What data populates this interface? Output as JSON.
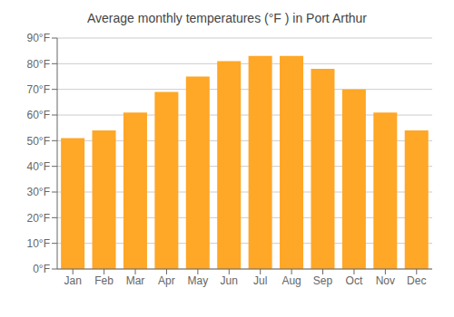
{
  "chart_data": {
    "type": "bar",
    "title": "Average monthly temperatures (°F ) in Port Arthur",
    "categories": [
      "Jan",
      "Feb",
      "Mar",
      "Apr",
      "May",
      "Jun",
      "Jul",
      "Aug",
      "Sep",
      "Oct",
      "Nov",
      "Dec"
    ],
    "values": [
      51,
      54,
      61,
      69,
      75,
      81,
      83,
      83,
      78,
      70,
      61,
      54
    ],
    "color": "#FFA726",
    "ylim": [
      0,
      90
    ],
    "yticks": [
      {
        "value": 0,
        "label": "0°F"
      },
      {
        "value": 10,
        "label": "10°F"
      },
      {
        "value": 20,
        "label": "20°F"
      },
      {
        "value": 30,
        "label": "30°F"
      },
      {
        "value": 40,
        "label": "40°F"
      },
      {
        "value": 50,
        "label": "50°F"
      },
      {
        "value": 60,
        "label": "60°F"
      },
      {
        "value": 70,
        "label": "70°F"
      },
      {
        "value": 80,
        "label": "80°F"
      },
      {
        "value": 90,
        "label": "90°F"
      }
    ],
    "grid": true
  }
}
